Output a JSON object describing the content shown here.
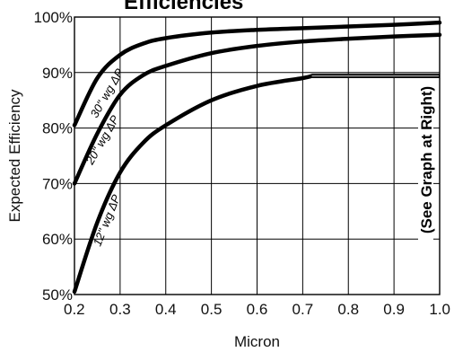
{
  "chart_data": {
    "type": "line",
    "title": "Efficiencies",
    "xlabel": "Micron",
    "ylabel": "Expected Efficiency",
    "xlim": [
      0.2,
      1.0
    ],
    "ylim": [
      50,
      100
    ],
    "grid": true,
    "x_ticks": [
      0.2,
      0.3,
      0.4,
      0.5,
      0.6,
      0.7,
      0.8,
      0.9,
      1.0
    ],
    "x_tick_labels": [
      "0.2",
      "0.3",
      "0.4",
      "0.5",
      "0.6",
      "0.7",
      "0.8",
      "0.9",
      "1.0"
    ],
    "y_ticks": [
      50,
      60,
      70,
      80,
      90,
      100
    ],
    "y_tick_labels": [
      "50%",
      "60%",
      "70%",
      "80%",
      "90%",
      "100%"
    ],
    "series": [
      {
        "name": "30\" wg ΔP",
        "x": [
          0.2,
          0.25,
          0.3,
          0.35,
          0.4,
          0.5,
          0.6,
          0.7,
          0.8,
          0.9,
          1.0
        ],
        "y": [
          80.5,
          89.0,
          93.2,
          95.2,
          96.2,
          97.2,
          97.7,
          98.0,
          98.3,
          98.6,
          99.0
        ]
      },
      {
        "name": "20\" wg ΔP",
        "x": [
          0.2,
          0.25,
          0.3,
          0.35,
          0.4,
          0.5,
          0.6,
          0.7,
          0.8,
          0.9,
          1.0
        ],
        "y": [
          70.0,
          79.0,
          86.0,
          89.5,
          91.2,
          93.5,
          94.8,
          95.6,
          96.1,
          96.5,
          96.8
        ]
      },
      {
        "name": "12\" wg ΔP",
        "x": [
          0.2,
          0.25,
          0.3,
          0.35,
          0.4,
          0.5,
          0.6,
          0.7,
          0.72,
          0.8,
          0.9,
          1.0
        ],
        "y": [
          50.5,
          63.0,
          72.0,
          77.3,
          80.5,
          85.0,
          87.6,
          89.0,
          89.4,
          89.4,
          89.4,
          89.4
        ]
      }
    ],
    "annotation": "(See Graph at Right)",
    "line_color": "#000000",
    "highlight_color": "#808080",
    "grid_color": "#000000"
  }
}
